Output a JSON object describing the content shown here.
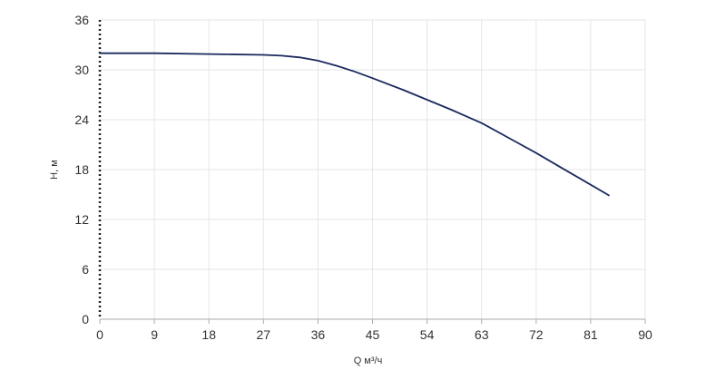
{
  "chart_data": {
    "type": "line",
    "xlabel": "Q м³/ч",
    "ylabel": "H, м",
    "xlim": [
      0,
      90
    ],
    "ylim": [
      0,
      36
    ],
    "x_ticks": [
      0,
      9,
      18,
      27,
      36,
      45,
      54,
      63,
      72,
      81,
      90
    ],
    "y_ticks": [
      0,
      6,
      12,
      18,
      24,
      30,
      36
    ],
    "grid": true,
    "series": [
      {
        "color": "#1b2a5e",
        "x": [
          0,
          9,
          18,
          27,
          30,
          33,
          36,
          39,
          42,
          45,
          50,
          54,
          58,
          63,
          68,
          72,
          76,
          80,
          84
        ],
        "y": [
          32.0,
          32.0,
          31.9,
          31.8,
          31.7,
          31.5,
          31.1,
          30.5,
          29.8,
          29.0,
          27.6,
          26.4,
          25.2,
          23.6,
          21.6,
          20.0,
          18.3,
          16.6,
          14.9
        ]
      }
    ]
  },
  "colors": {
    "grid": "#e6e6e6",
    "axis": "#aaaaaa",
    "line": "#1b2a5e"
  }
}
